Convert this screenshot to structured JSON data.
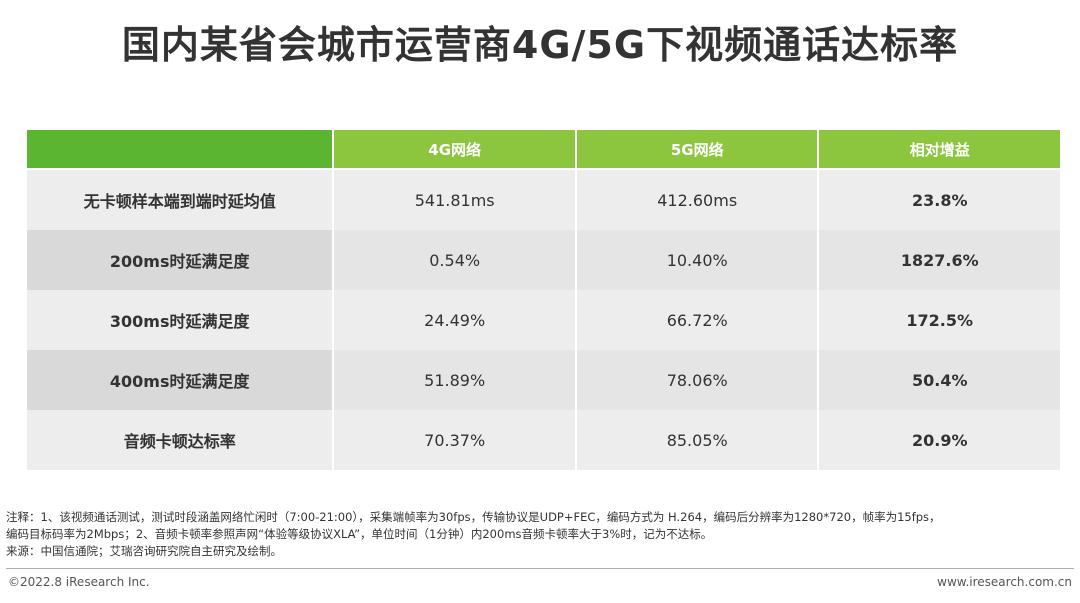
{
  "title": "国内某省会城市运营商4G/5G下视频通话达标率",
  "chart_data": {
    "type": "table",
    "columns": [
      "4G网络",
      "5G网络",
      "相对增益"
    ],
    "rows": [
      {
        "label": "无卡顿样本端到端时延均值",
        "g4": "541.81ms",
        "g5": "412.60ms",
        "gain": "23.8%"
      },
      {
        "label": "200ms时延满足度",
        "g4": "0.54%",
        "g5": "10.40%",
        "gain": "1827.6%"
      },
      {
        "label": "300ms时延满足度",
        "g4": "24.49%",
        "g5": "66.72%",
        "gain": "172.5%"
      },
      {
        "label": "400ms时延满足度",
        "g4": "51.89%",
        "g5": "78.06%",
        "gain": "50.4%"
      },
      {
        "label": "音频卡顿达标率",
        "g4": "70.37%",
        "g5": "85.05%",
        "gain": "20.9%"
      }
    ]
  },
  "notes": {
    "line1": "注释：1、该视频通话测试，测试时段涵盖网络忙闲时（7:00-21:00），采集端帧率为30fps，传输协议是UDP+FEC，编码方式为 H.264，编码后分辨率为1280*720，帧率为15fps，",
    "line2": "编码目标码率为2Mbps；2、音频卡顿率参照声网“体验等级协议XLA”，单位时间（1分钟）内200ms音频卡顿率大于3%时，记为不达标。",
    "line3": "来源：中国信通院；艾瑞咨询研究院自主研究及绘制。"
  },
  "footer": {
    "copyright": "©2022.8 iResearch Inc.",
    "website": "www.iresearch.com.cn"
  }
}
